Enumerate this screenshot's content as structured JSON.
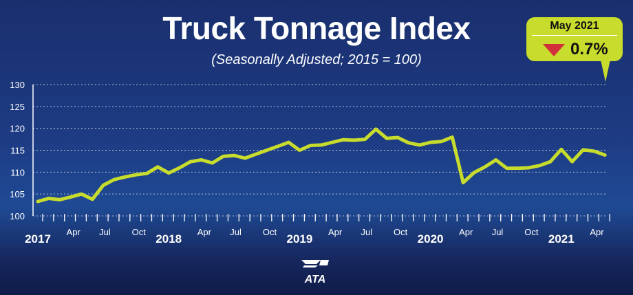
{
  "chart_data": {
    "type": "line",
    "title": "Truck Tonnage Index",
    "subtitle": "(Seasonally Adjusted; 2015 = 100)",
    "xlabel": "",
    "ylabel": "",
    "ylim": [
      100,
      130
    ],
    "yticks": [
      "100",
      "105",
      "110",
      "115",
      "120",
      "125",
      "130"
    ],
    "grid": true,
    "x_start": "2017-01",
    "x_end": "2021-05",
    "month_labels": [
      {
        "label": "2017",
        "month_index": 0,
        "bold": true
      },
      {
        "label": "Apr",
        "month_index": 3,
        "bold": false
      },
      {
        "label": "Jul",
        "month_index": 6,
        "bold": false
      },
      {
        "label": "Oct",
        "month_index": 9,
        "bold": false
      },
      {
        "label": "2018",
        "month_index": 12,
        "bold": true
      },
      {
        "label": "Apr",
        "month_index": 15,
        "bold": false
      },
      {
        "label": "Jul",
        "month_index": 18,
        "bold": false
      },
      {
        "label": "Oct",
        "month_index": 21,
        "bold": false
      },
      {
        "label": "2019",
        "month_index": 24,
        "bold": true
      },
      {
        "label": "Apr",
        "month_index": 27,
        "bold": false
      },
      {
        "label": "Jul",
        "month_index": 30,
        "bold": false
      },
      {
        "label": "Oct",
        "month_index": 33,
        "bold": false
      },
      {
        "label": "2020",
        "month_index": 36,
        "bold": true
      },
      {
        "label": "Apr",
        "month_index": 39,
        "bold": false
      },
      {
        "label": "Jul",
        "month_index": 42,
        "bold": false
      },
      {
        "label": "Oct",
        "month_index": 45,
        "bold": false
      },
      {
        "label": "2021",
        "month_index": 48,
        "bold": true
      },
      {
        "label": "Apr",
        "month_index": 51,
        "bold": false
      }
    ],
    "values": [
      103.3,
      104.0,
      103.7,
      104.3,
      105.0,
      103.8,
      107.0,
      108.3,
      108.9,
      109.4,
      109.7,
      111.2,
      109.8,
      111.0,
      112.4,
      112.8,
      112.1,
      113.6,
      113.8,
      113.2,
      114.1,
      115.0,
      115.9,
      116.8,
      115.0,
      116.1,
      116.2,
      116.8,
      117.4,
      117.3,
      117.5,
      119.8,
      117.7,
      117.9,
      116.7,
      116.2,
      116.8,
      117.0,
      118.0,
      107.6,
      109.9,
      111.2,
      112.8,
      110.9,
      110.9,
      111.0,
      111.5,
      112.4,
      115.2,
      112.4,
      115.1,
      114.8,
      113.9
    ],
    "line_color": "#c7dc2c"
  },
  "callout": {
    "date": "May 2021",
    "direction": "down",
    "change": "0.7%",
    "arrow_color": "#d2303a"
  },
  "logo": {
    "text": "ATA"
  }
}
